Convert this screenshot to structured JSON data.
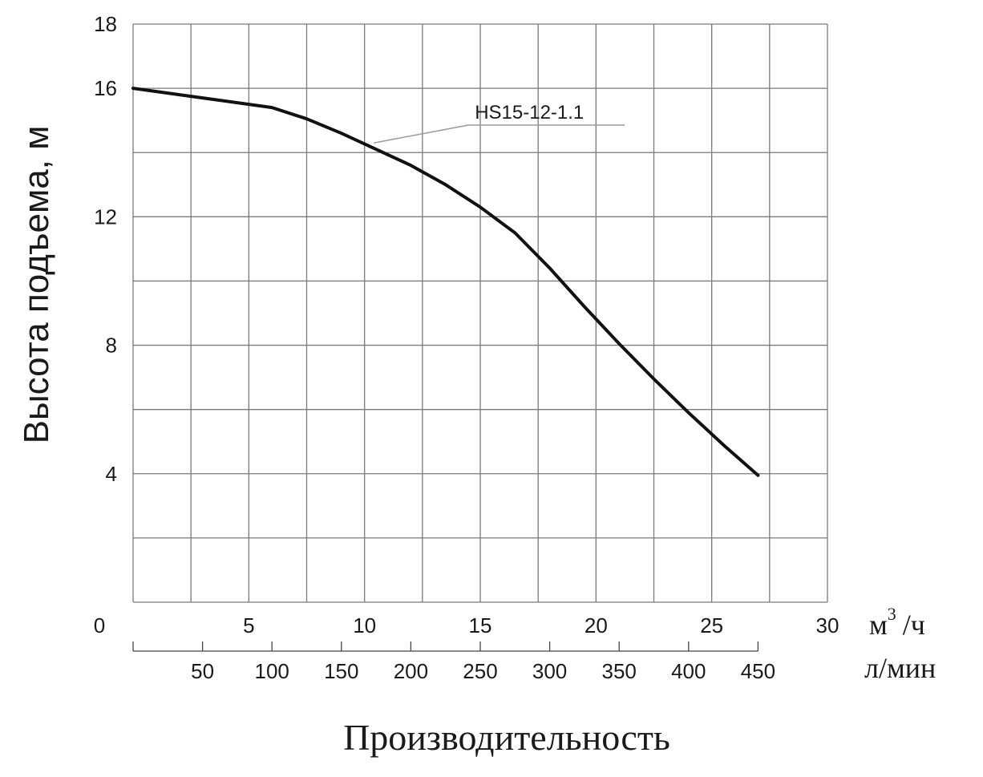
{
  "chart_data": {
    "type": "line",
    "ylabel": "Высота подъема, м",
    "xlabel": "Производительность",
    "ylim": [
      0,
      18
    ],
    "xlim": [
      0,
      30
    ],
    "grid": true,
    "y_ticks": [
      {
        "value": 4,
        "label": "4"
      },
      {
        "value": 8,
        "label": "8"
      },
      {
        "value": 12,
        "label": "12"
      },
      {
        "value": 16,
        "label": "16"
      },
      {
        "value": 18,
        "label": "18"
      }
    ],
    "x_ticks": [
      {
        "value": 0,
        "label": "0"
      },
      {
        "value": 5,
        "label": "5"
      },
      {
        "value": 10,
        "label": "10"
      },
      {
        "value": 15,
        "label": "15"
      },
      {
        "value": 20,
        "label": "20"
      },
      {
        "value": 25,
        "label": "25"
      },
      {
        "value": 30,
        "label": "30"
      }
    ],
    "x_unit_main": "м",
    "x_unit_sup": "3",
    "x_unit_tail": "/ч",
    "secondary_axis": {
      "unit": "л/мин",
      "ticks": [
        {
          "value": 50,
          "label": "50"
        },
        {
          "value": 100,
          "label": "100"
        },
        {
          "value": 150,
          "label": "150"
        },
        {
          "value": 200,
          "label": "200"
        },
        {
          "value": 250,
          "label": "250"
        },
        {
          "value": 300,
          "label": "300"
        },
        {
          "value": 350,
          "label": "350"
        },
        {
          "value": 400,
          "label": "400"
        },
        {
          "value": 450,
          "label": "450"
        }
      ]
    },
    "series": [
      {
        "name": "HS15-12-1.1",
        "color": "#111111",
        "x": [
          0,
          3,
          6,
          7.5,
          9,
          10.5,
          12,
          13.5,
          15,
          16.5,
          18,
          19.5,
          21,
          22.5,
          24,
          25.5,
          27
        ],
        "y": [
          16.0,
          15.7,
          15.4,
          15.05,
          14.6,
          14.1,
          13.6,
          13.0,
          12.3,
          11.5,
          10.4,
          9.2,
          8.05,
          6.95,
          5.9,
          4.9,
          3.95
        ]
      }
    ],
    "annotation": {
      "text": "HS15-12-1.1",
      "x": 10.4,
      "y": 14.3
    }
  }
}
